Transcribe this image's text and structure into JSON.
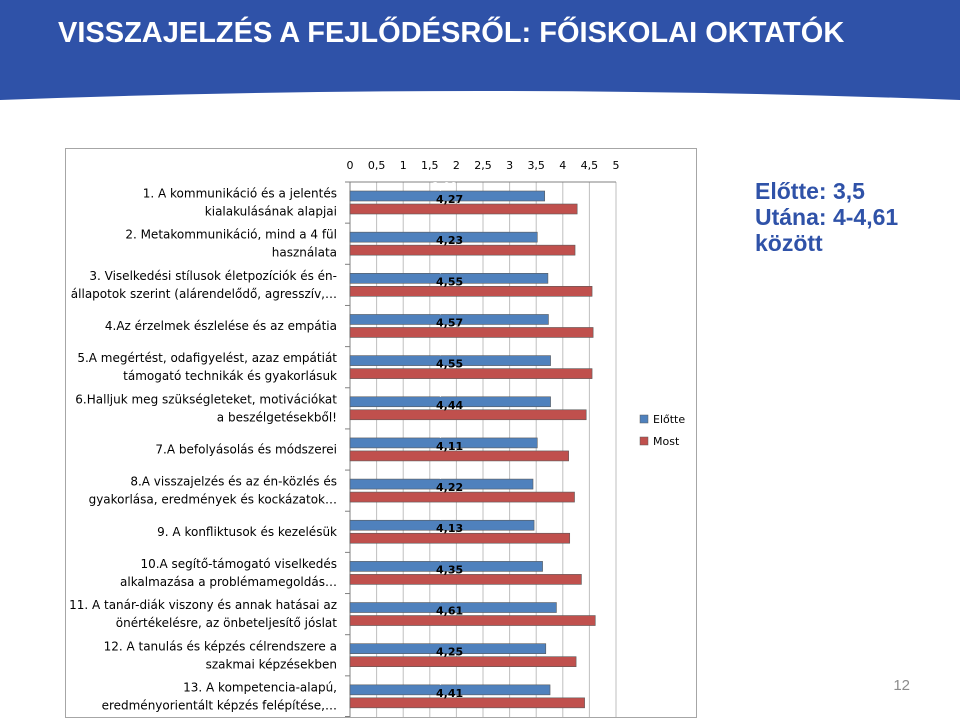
{
  "slide": {
    "title": "VISSZAJELZÉS A FEJLŐDÉSRŐL: FŐISKOLAI OKTATÓK",
    "summary": [
      "Előtte:  3,5",
      "Utána: 4-4,61",
      "között"
    ],
    "page_number": "12",
    "colors": {
      "header": "#2f52a8",
      "summary_text": "#2f52a8",
      "series_before": "#4f81bd",
      "series_after": "#c0504d"
    }
  },
  "chart_data": {
    "type": "bar",
    "orientation": "horizontal",
    "x_axis_position": "top",
    "xlim": [
      0,
      5
    ],
    "xticks": [
      "0",
      "0,5",
      "1",
      "1,5",
      "2",
      "2,5",
      "3",
      "3,5",
      "4",
      "4,5",
      "5"
    ],
    "grid": true,
    "legend_position": "right",
    "categories": [
      [
        "1. A kommunikáció és a jelentés",
        "kialakulásának alapjai"
      ],
      [
        "2. Metakommunikáció, mind a 4 fül",
        "használata"
      ],
      [
        "3. Viselkedési stílusok életpozíciók és én-",
        "állapotok szerint (alárendelődő, agresszív,…"
      ],
      [
        "4.Az érzelmek észlelése és az empátia"
      ],
      [
        "5.A megértést, odafigyelést, azaz empátiát",
        "támogató technikák és gyakorlásuk"
      ],
      [
        "6.Halljuk meg szükségleteket, motivációkat",
        "a beszélgetésekből!"
      ],
      [
        "7.A befolyásolás és módszerei"
      ],
      [
        "8.A visszajelzés és az én-közlés és",
        "gyakorlása, eredmények és kockázatok…"
      ],
      [
        "9. A konfliktusok és kezelésük"
      ],
      [
        "10.A segítő-támogató viselkedés",
        "alkalmazása a problémamegoldás…"
      ],
      [
        "11. A tanár-diák viszony és annak hatásai az",
        "önértékelésre, az önbeteljesítő jóslat"
      ],
      [
        "12. A tanulás és képzés célrendszere a",
        "szakmai képzésekben"
      ],
      [
        "13. A kompetencia-alapú,",
        "eredményorientált képzés felépítése,…"
      ]
    ],
    "series": [
      {
        "name": "Előtte",
        "color": "#4f81bd",
        "values": [
          3.66,
          3.52,
          3.72,
          3.73,
          3.77,
          3.77,
          3.52,
          3.44,
          3.46,
          3.62,
          3.88,
          3.68,
          3.76
        ],
        "labels": [
          "3,66",
          "3,52",
          "3,72",
          "3,73",
          "3,77",
          "3,77",
          "3,52",
          "3,44",
          "3,46",
          "3,62",
          "3,88",
          "3,68",
          "3,76"
        ]
      },
      {
        "name": "Most",
        "color": "#c0504d",
        "values": [
          4.27,
          4.23,
          4.55,
          4.57,
          4.55,
          4.44,
          4.11,
          4.22,
          4.13,
          4.35,
          4.61,
          4.25,
          4.41
        ],
        "labels": [
          "4,27",
          "4,23",
          "4,55",
          "4,57",
          "4,55",
          "4,44",
          "4,11",
          "4,22",
          "4,13",
          "4,35",
          "4,61",
          "4,25",
          "4,41"
        ]
      }
    ]
  }
}
